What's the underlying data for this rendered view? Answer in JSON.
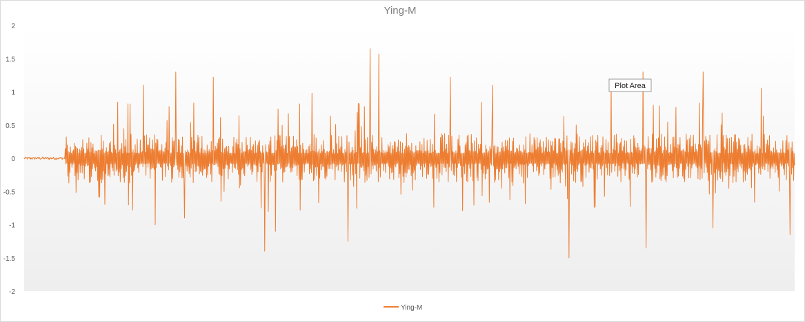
{
  "chart_data": {
    "type": "line",
    "title": "Ying-M",
    "xlabel": "",
    "ylabel": "",
    "ylim": [
      -2,
      2
    ],
    "y_ticks": [
      "2",
      "1.5",
      "1",
      "0.5",
      "0",
      "-0.5",
      "-1",
      "-1.5",
      "-2"
    ],
    "grid": false,
    "legend_position": "bottom",
    "series": [
      {
        "name": "Ying-M",
        "color": "#ED7D31",
        "approx_points": 1500,
        "quiet_until_index": 80,
        "quiet_amplitude": 0.02,
        "typical_amplitude": 0.25,
        "peaks": [
          {
            "i": 155,
            "v": 0.82
          },
          {
            "i": 178,
            "v": 1.1
          },
          {
            "i": 196,
            "v": -1.0
          },
          {
            "i": 227,
            "v": 1.3
          },
          {
            "i": 240,
            "v": -0.9
          },
          {
            "i": 283,
            "v": 1.22
          },
          {
            "i": 360,
            "v": -1.4
          },
          {
            "i": 376,
            "v": -1.1
          },
          {
            "i": 430,
            "v": 0.98
          },
          {
            "i": 484,
            "v": -1.25
          },
          {
            "i": 517,
            "v": 1.65
          },
          {
            "i": 530,
            "v": 1.57
          },
          {
            "i": 637,
            "v": 1.22
          },
          {
            "i": 700,
            "v": 1.1
          },
          {
            "i": 815,
            "v": -1.5
          },
          {
            "i": 878,
            "v": 1.15
          },
          {
            "i": 925,
            "v": 1.3
          },
          {
            "i": 930,
            "v": -1.35
          },
          {
            "i": 1015,
            "v": 1.3
          },
          {
            "i": 1030,
            "v": -1.05
          },
          {
            "i": 1102,
            "v": 1.05
          },
          {
            "i": 1145,
            "v": -1.15
          }
        ]
      }
    ]
  },
  "tooltip": {
    "label": "Plot Area"
  },
  "colors": {
    "line": "#ED7D31",
    "plot_bg_top": "#ffffff",
    "plot_bg_bottom": "#eeeeee"
  }
}
